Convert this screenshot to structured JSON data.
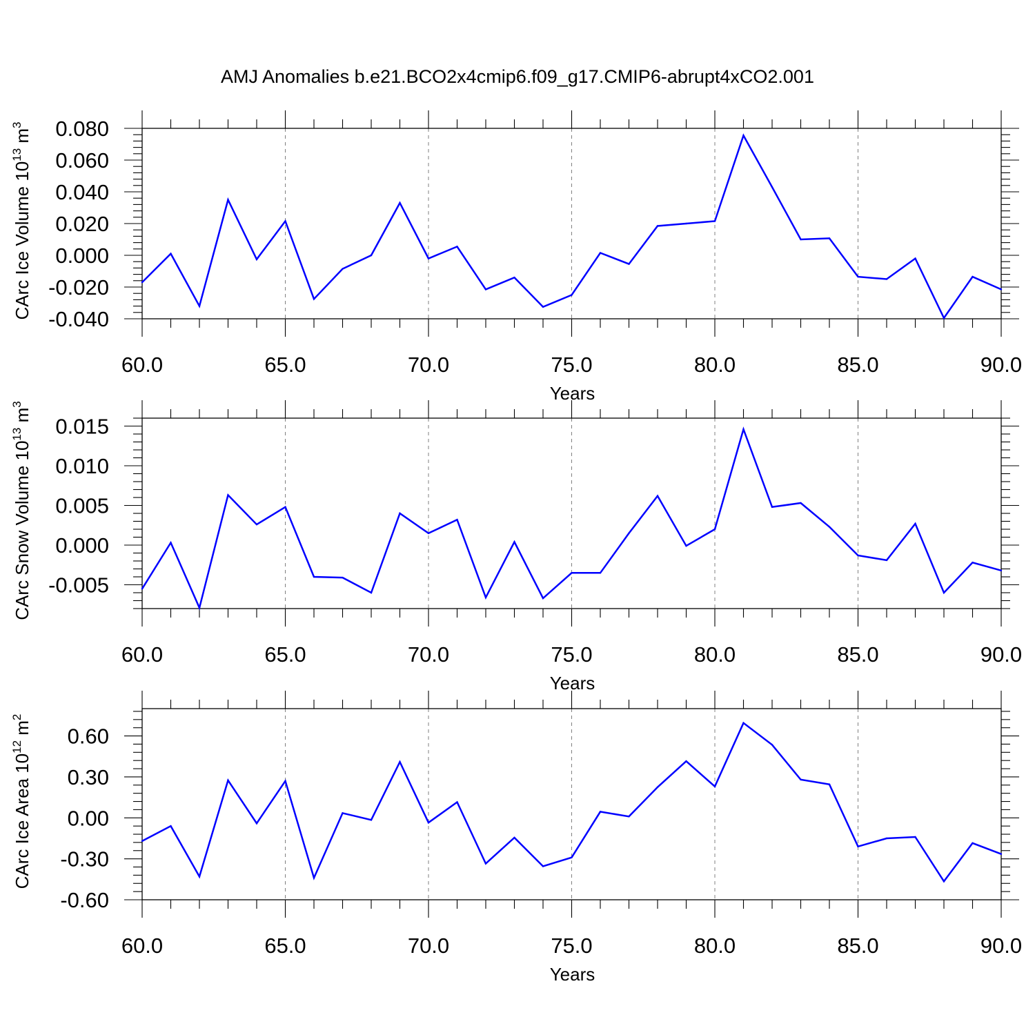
{
  "page": {
    "title": "AMJ Anomalies b.e21.BCO2x4cmip6.f09_g17.CMIP6-abrupt4xCO2.001"
  },
  "colors": {
    "series": "#0000ff",
    "axis": "#000000",
    "grid": "#7f7f7f"
  },
  "chart_data": [
    {
      "type": "line",
      "xlabel": "Years",
      "ylabel": {
        "main": "CArc Ice Volume 10",
        "sup": "13",
        "unit": " m",
        "unit_sup": "3"
      },
      "xlim": [
        60,
        90
      ],
      "ylim": [
        -0.04,
        0.08
      ],
      "xticks": [
        60,
        65,
        70,
        75,
        80,
        85,
        90
      ],
      "xtick_labels": [
        "60.0",
        "65.0",
        "70.0",
        "75.0",
        "80.0",
        "85.0",
        "90.0"
      ],
      "yticks": [
        -0.04,
        -0.02,
        0.0,
        0.02,
        0.04,
        0.06,
        0.08
      ],
      "ytick_labels": [
        "-0.040",
        "-0.020",
        "0.000",
        "0.020",
        "0.040",
        "0.060",
        "0.080"
      ],
      "grid": "vertical dashed at major x ticks",
      "x": [
        60,
        61,
        62,
        63,
        64,
        65,
        66,
        67,
        68,
        69,
        70,
        71,
        72,
        73,
        74,
        75,
        76,
        77,
        78,
        79,
        80,
        81,
        82,
        83,
        84,
        85,
        86,
        87,
        88,
        89,
        90
      ],
      "y": [
        -0.017,
        0.001,
        -0.032,
        0.035,
        -0.0025,
        0.0215,
        -0.0275,
        -0.0085,
        0.0,
        0.033,
        -0.002,
        0.0055,
        -0.0215,
        -0.014,
        -0.0325,
        -0.025,
        0.0015,
        -0.0055,
        0.0185,
        0.02,
        0.0215,
        0.0755,
        0.043,
        0.01,
        0.0107,
        -0.0135,
        -0.015,
        -0.002,
        -0.0395,
        -0.0135,
        -0.0215
      ]
    },
    {
      "type": "line",
      "xlabel": "Years",
      "ylabel": {
        "main": "CArc Snow Volume 10",
        "sup": "13",
        "unit": " m",
        "unit_sup": "3"
      },
      "xlim": [
        60,
        90
      ],
      "ylim": [
        -0.008,
        0.016
      ],
      "xticks": [
        60,
        65,
        70,
        75,
        80,
        85,
        90
      ],
      "xtick_labels": [
        "60.0",
        "65.0",
        "70.0",
        "75.0",
        "80.0",
        "85.0",
        "90.0"
      ],
      "yticks": [
        -0.005,
        0.0,
        0.005,
        0.01,
        0.015
      ],
      "ytick_labels": [
        "-0.005",
        "0.000",
        "0.005",
        "0.010",
        "0.015"
      ],
      "grid": "vertical dashed at major x ticks",
      "x": [
        60,
        61,
        62,
        63,
        64,
        65,
        66,
        67,
        68,
        69,
        70,
        71,
        72,
        73,
        74,
        75,
        76,
        77,
        78,
        79,
        80,
        81,
        82,
        83,
        84,
        85,
        86,
        87,
        88,
        89,
        90
      ],
      "y": [
        -0.0055,
        0.0003,
        -0.0079,
        0.0063,
        0.0026,
        0.0048,
        -0.004,
        -0.0041,
        -0.006,
        0.004,
        0.0015,
        0.0032,
        -0.0066,
        0.0004,
        -0.0067,
        -0.0035,
        -0.0035,
        0.0015,
        0.0062,
        -0.0001,
        0.002,
        0.0146,
        0.0048,
        0.0053,
        0.0023,
        -0.0013,
        -0.0019,
        0.0027,
        -0.006,
        -0.0022,
        -0.0032
      ]
    },
    {
      "type": "line",
      "xlabel": "Years",
      "ylabel": {
        "main": "CArc Ice Area 10",
        "sup": "12",
        "unit": " m",
        "unit_sup": "2"
      },
      "xlim": [
        60,
        90
      ],
      "ylim": [
        -0.6,
        0.8
      ],
      "xticks": [
        60,
        65,
        70,
        75,
        80,
        85,
        90
      ],
      "xtick_labels": [
        "60.0",
        "65.0",
        "70.0",
        "75.0",
        "80.0",
        "85.0",
        "90.0"
      ],
      "yticks": [
        -0.6,
        -0.3,
        0.0,
        0.3,
        0.6
      ],
      "ytick_labels": [
        "-0.60",
        "-0.30",
        "0.00",
        "0.30",
        "0.60"
      ],
      "grid": "vertical dashed at major x ticks",
      "x": [
        60,
        61,
        62,
        63,
        64,
        65,
        66,
        67,
        68,
        69,
        70,
        71,
        72,
        73,
        74,
        75,
        76,
        77,
        78,
        79,
        80,
        81,
        82,
        83,
        84,
        85,
        86,
        87,
        88,
        89,
        90
      ],
      "y": [
        -0.17,
        -0.06,
        -0.43,
        0.275,
        -0.04,
        0.27,
        -0.44,
        0.035,
        -0.015,
        0.41,
        -0.035,
        0.115,
        -0.335,
        -0.145,
        -0.355,
        -0.29,
        0.045,
        0.01,
        0.225,
        0.415,
        0.23,
        0.695,
        0.535,
        0.28,
        0.245,
        -0.21,
        -0.15,
        -0.14,
        -0.465,
        -0.185,
        -0.265
      ]
    }
  ]
}
